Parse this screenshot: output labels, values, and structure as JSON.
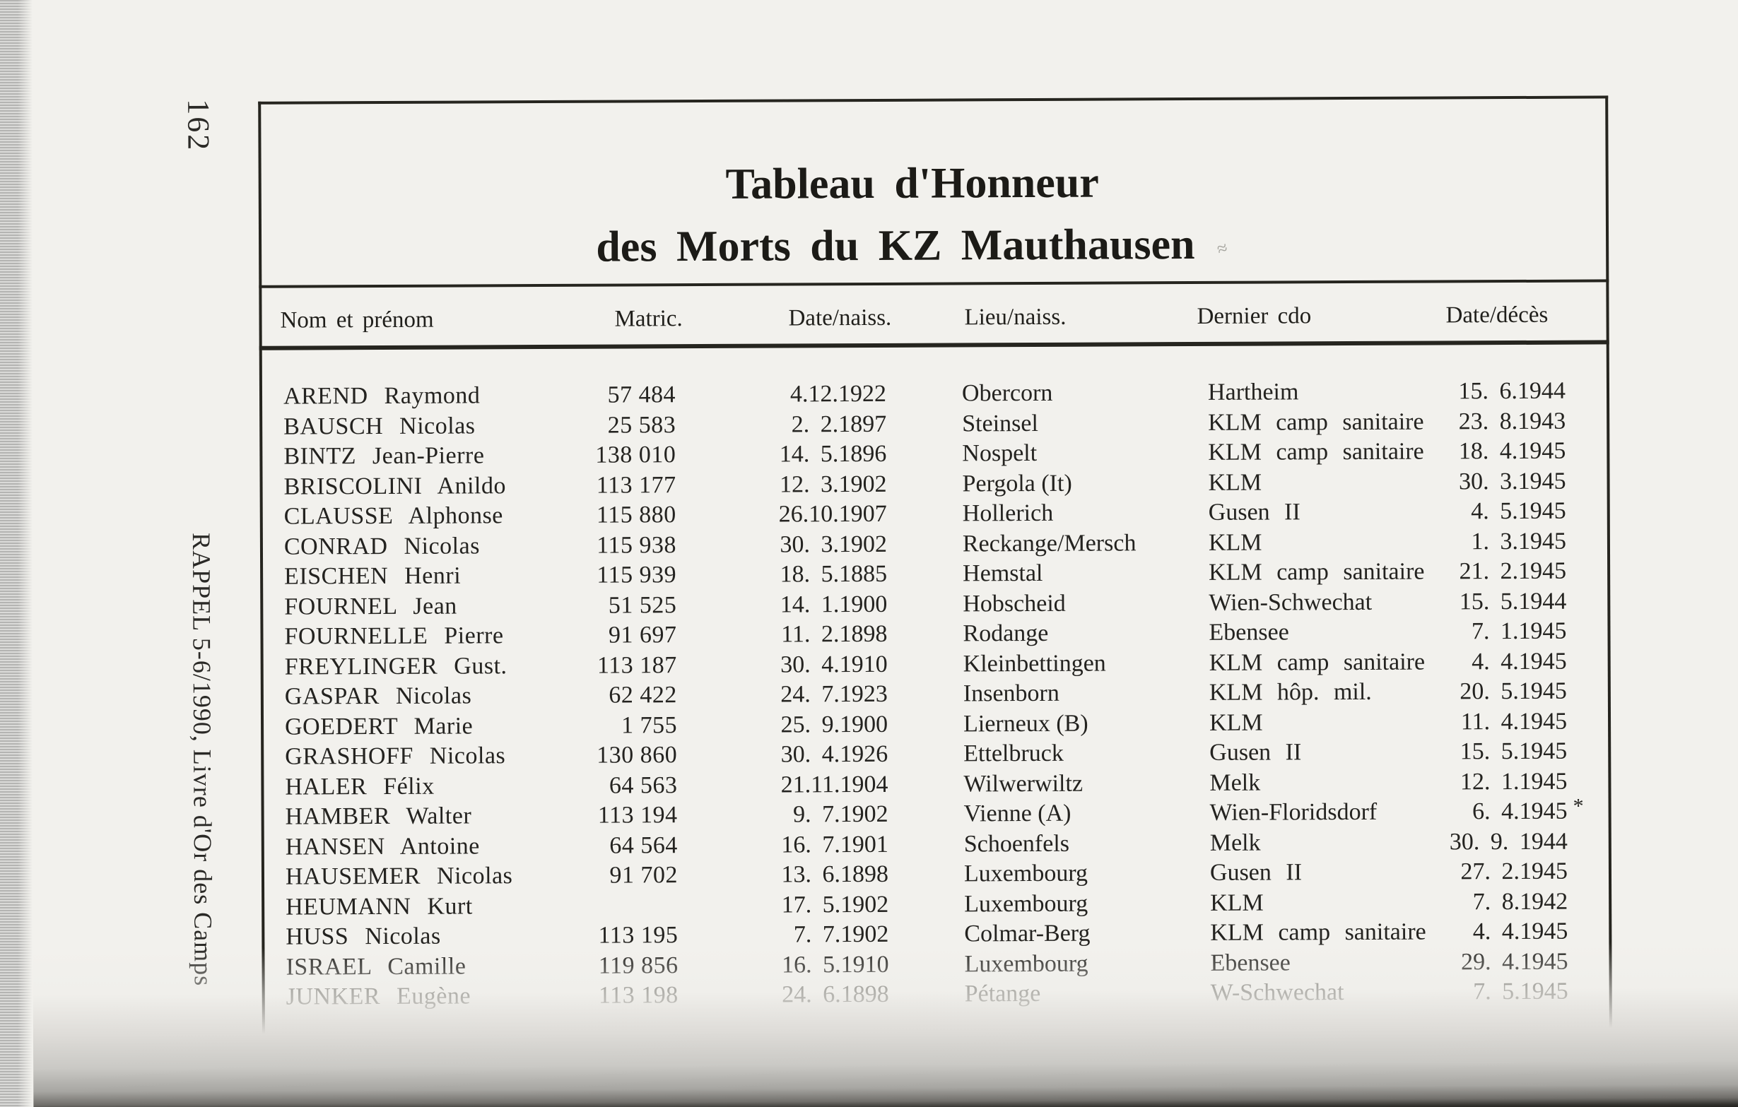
{
  "page": {
    "number": "162",
    "margin_note": "RAPPEL 5-6/1990, Livre d'Or des Camps",
    "pen_mark": "≈"
  },
  "table": {
    "title_line1": "Tableau d'Honneur",
    "title_line2": "des Morts du KZ Mauthausen",
    "columns": [
      "Nom et prénom",
      "Matric.",
      "Date/naiss.",
      "Lieu/naiss.",
      "Dernier cdo",
      "Date/décès"
    ],
    "rows": [
      {
        "name": "AREND Raymond",
        "matric": "57 484",
        "birth_date": "4.12.1922",
        "birth_place": "Obercorn",
        "last_commando": "Hartheim",
        "death_date": "15. 6.1944"
      },
      {
        "name": "BAUSCH Nicolas",
        "matric": "25 583",
        "birth_date": "2. 2.1897",
        "birth_place": "Steinsel",
        "last_commando": "KLM camp sanitaire",
        "death_date": "23. 8.1943"
      },
      {
        "name": "BINTZ Jean-Pierre",
        "matric": "138 010",
        "birth_date": "14. 5.1896",
        "birth_place": "Nospelt",
        "last_commando": "KLM camp sanitaire",
        "death_date": "18. 4.1945"
      },
      {
        "name": "BRISCOLINI Anildo",
        "matric": "113 177",
        "birth_date": "12. 3.1902",
        "birth_place": "Pergola (It)",
        "last_commando": "KLM",
        "death_date": "30. 3.1945"
      },
      {
        "name": "CLAUSSE Alphonse",
        "matric": "115 880",
        "birth_date": "26.10.1907",
        "birth_place": "Hollerich",
        "last_commando": "Gusen II",
        "death_date": "4. 5.1945"
      },
      {
        "name": "CONRAD Nicolas",
        "matric": "115 938",
        "birth_date": "30. 3.1902",
        "birth_place": "Reckange/Mersch",
        "last_commando": "KLM",
        "death_date": "1. 3.1945"
      },
      {
        "name": "EISCHEN Henri",
        "matric": "115 939",
        "birth_date": "18. 5.1885",
        "birth_place": "Hemstal",
        "last_commando": "KLM camp sanitaire",
        "death_date": "21. 2.1945"
      },
      {
        "name": "FOURNEL Jean",
        "matric": "51 525",
        "birth_date": "14. 1.1900",
        "birth_place": "Hobscheid",
        "last_commando": "Wien-Schwechat",
        "death_date": "15. 5.1944"
      },
      {
        "name": "FOURNELLE Pierre",
        "matric": "91 697",
        "birth_date": "11. 2.1898",
        "birth_place": "Rodange",
        "last_commando": "Ebensee",
        "death_date": "7. 1.1945"
      },
      {
        "name": "FREYLINGER Gust.",
        "matric": "113 187",
        "birth_date": "30. 4.1910",
        "birth_place": "Kleinbettingen",
        "last_commando": "KLM camp sanitaire",
        "death_date": "4. 4.1945"
      },
      {
        "name": "GASPAR Nicolas",
        "matric": "62 422",
        "birth_date": "24. 7.1923",
        "birth_place": "Insenborn",
        "last_commando": "KLM hôp. mil.",
        "death_date": "20. 5.1945"
      },
      {
        "name": "GOEDERT Marie",
        "matric": "1 755",
        "birth_date": "25. 9.1900",
        "birth_place": "Lierneux (B)",
        "last_commando": "KLM",
        "death_date": "11. 4.1945"
      },
      {
        "name": "GRASHOFF Nicolas",
        "matric": "130 860",
        "birth_date": "30. 4.1926",
        "birth_place": "Ettelbruck",
        "last_commando": "Gusen II",
        "death_date": "15. 5.1945"
      },
      {
        "name": "HALER Félix",
        "matric": "64 563",
        "birth_date": "21.11.1904",
        "birth_place": "Wilwerwiltz",
        "last_commando": "Melk",
        "death_date": "12. 1.1945"
      },
      {
        "name": "HAMBER Walter",
        "matric": "113 194",
        "birth_date": "9. 7.1902",
        "birth_place": "Vienne (A)",
        "last_commando": "Wien-Floridsdorf",
        "death_date": "6. 4.1945",
        "death_note": "*"
      },
      {
        "name": "HANSEN Antoine",
        "matric": "64 564",
        "birth_date": "16. 7.1901",
        "birth_place": "Schoenfels",
        "last_commando": "Melk",
        "death_date": "30. 9. 1944"
      },
      {
        "name": "HAUSEMER Nicolas",
        "matric": "91 702",
        "birth_date": "13. 6.1898",
        "birth_place": "Luxembourg",
        "last_commando": "Gusen II",
        "death_date": "27. 2.1945"
      },
      {
        "name": "HEUMANN Kurt",
        "matric": "",
        "birth_date": "17. 5.1902",
        "birth_place": "Luxembourg",
        "last_commando": "KLM",
        "death_date": "7. 8.1942"
      },
      {
        "name": "HUSS Nicolas",
        "matric": "113 195",
        "birth_date": "7. 7.1902",
        "birth_place": "Colmar-Berg",
        "last_commando": "KLM camp sanitaire",
        "death_date": "4. 4.1945"
      },
      {
        "name": "ISRAEL Camille",
        "matric": "119 856",
        "birth_date": "16. 5.1910",
        "birth_place": "Luxembourg",
        "last_commando": "Ebensee",
        "death_date": "29. 4.1945"
      },
      {
        "name": "JUNKER Eugène",
        "matric": "113 198",
        "birth_date": "24. 6.1898",
        "birth_place": "Pétange",
        "last_commando": "W-Schwechat",
        "death_date": "7. 5.1945"
      }
    ]
  }
}
